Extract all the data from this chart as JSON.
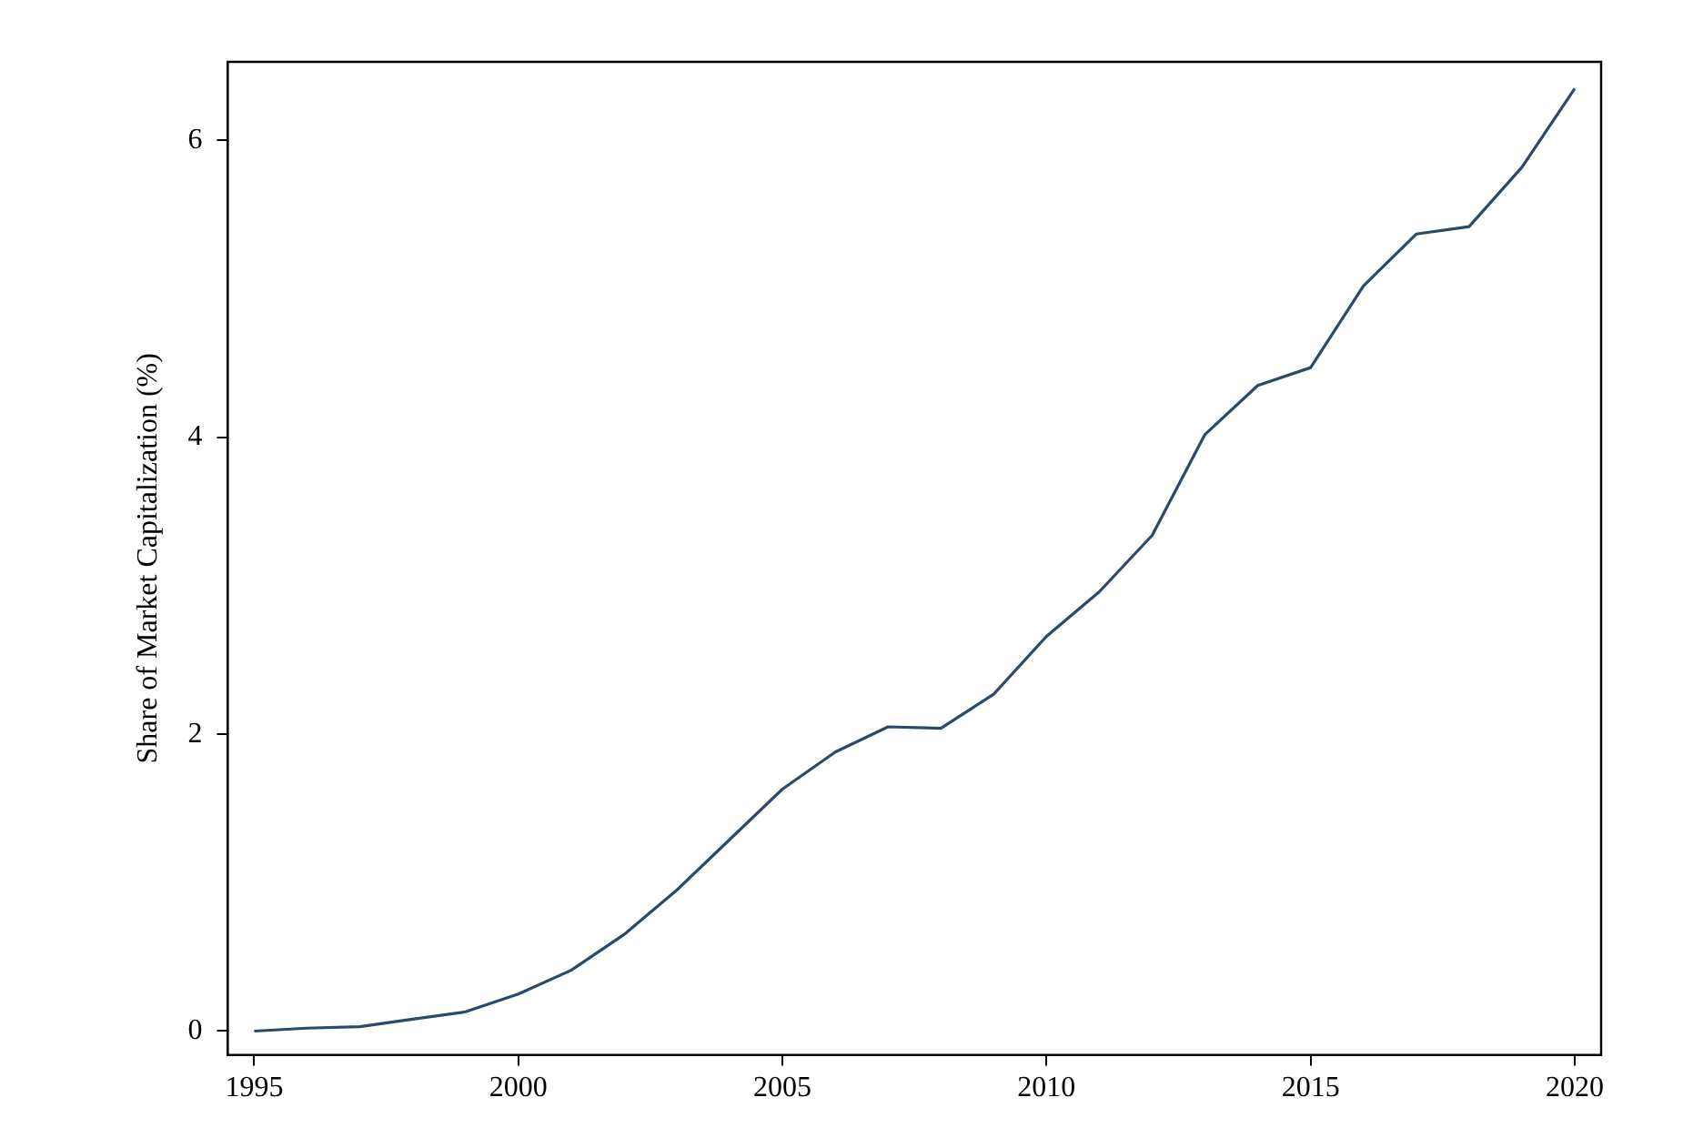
{
  "chart_data": {
    "type": "line",
    "ylabel": "Share of Market Capitalization (%)",
    "x": [
      1995,
      1996,
      1997,
      1998,
      1999,
      2000,
      2001,
      2002,
      2003,
      2004,
      2005,
      2006,
      2007,
      2008,
      2009,
      2010,
      2011,
      2012,
      2013,
      2014,
      2015,
      2016,
      2017,
      2018,
      2019,
      2020
    ],
    "series": [
      {
        "color": "#2b4a6b",
        "values": [
          0,
          0.02,
          0.03,
          0.08,
          0.13,
          0.25,
          0.41,
          0.65,
          0.95,
          1.29,
          1.63,
          1.88,
          2.05,
          2.04,
          2.27,
          2.66,
          2.96,
          3.34,
          4.02,
          4.35,
          4.47,
          5.02,
          5.37,
          5.42,
          5.82,
          6.35
        ]
      }
    ],
    "xlim": [
      1994.5,
      2020.5
    ],
    "xticks": [
      1995,
      2000,
      2005,
      2010,
      2015,
      2020
    ],
    "ylim": [
      -0.16,
      6.53
    ],
    "yticks": [
      0,
      2,
      4,
      6
    ],
    "grid": false,
    "legend": false,
    "marker": "none",
    "line_style": "solid"
  }
}
